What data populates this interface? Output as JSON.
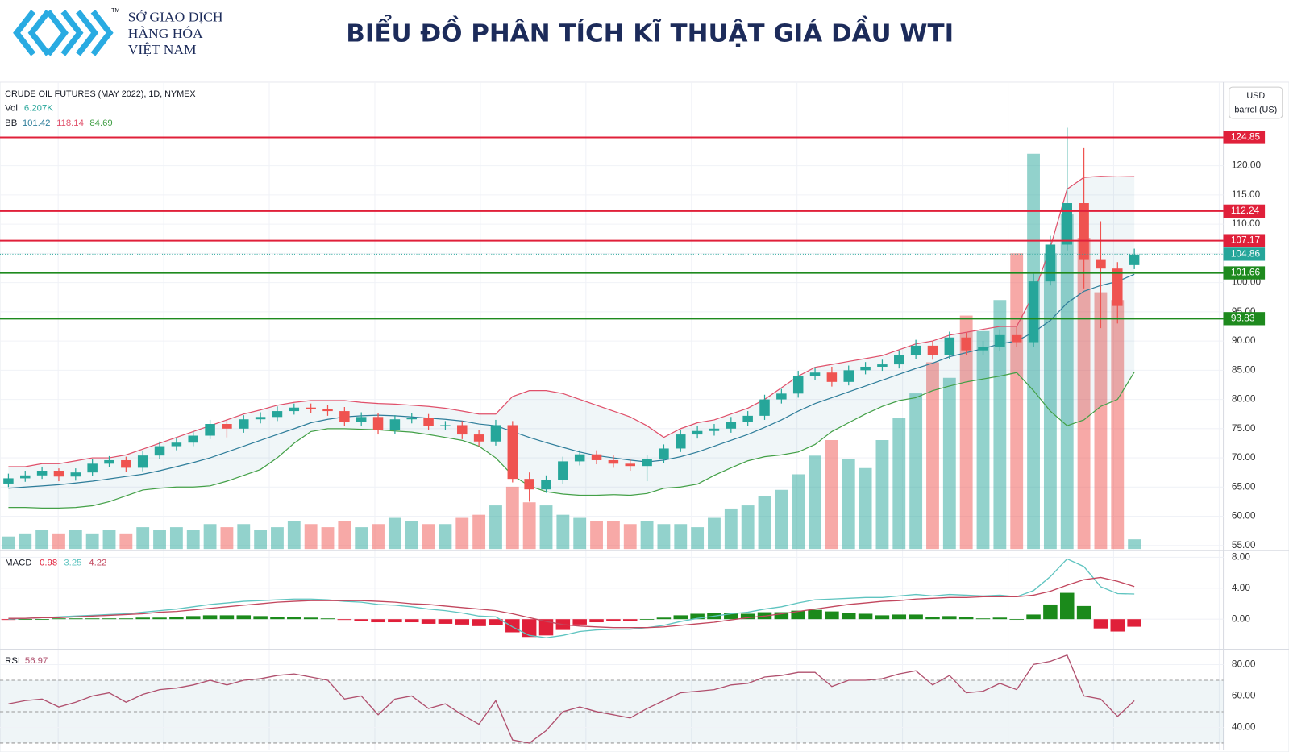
{
  "header": {
    "title": "BIỂU ĐỒ PHÂN TÍCH KĨ THUẬT GIÁ DẦU WTI",
    "logo": {
      "line1": "SỞ GIAO DỊCH",
      "line2": "HÀNG HÓA",
      "line3": "VIỆT NAM",
      "mark": "TM"
    }
  },
  "unit": {
    "currency": "USD",
    "measure": "barrel (US)"
  },
  "chart_data": [
    {
      "type": "candlestick",
      "title": "CRUDE OIL FUTURES (MAY 2022), 1D, NYMEX",
      "up_color": "#26a69a",
      "down_color": "#ef5350",
      "grid": true,
      "ylim": [
        54.4,
        134.3
      ],
      "yticks": [
        {
          "value": 55,
          "label": "55.00"
        },
        {
          "value": 60,
          "label": "60.00"
        },
        {
          "value": 65,
          "label": "65.00"
        },
        {
          "value": 70,
          "label": "70.00"
        },
        {
          "value": 75,
          "label": "75.00"
        },
        {
          "value": 80,
          "label": "80.00"
        },
        {
          "value": 85,
          "label": "85.00"
        },
        {
          "value": 90,
          "label": "90.00"
        },
        {
          "value": 95,
          "label": "95.00"
        },
        {
          "value": 100,
          "label": "100.00"
        },
        {
          "value": 105,
          "label": "105.00"
        },
        {
          "value": 110,
          "label": "110.00"
        },
        {
          "value": 115,
          "label": "115.00"
        },
        {
          "value": 120,
          "label": "120.00"
        }
      ],
      "open": [
        65.6,
        66.5,
        67,
        67.8,
        66.8,
        67.5,
        69,
        69.6,
        68.3,
        70.4,
        72,
        72.6,
        73.8,
        75.8,
        75,
        76.6,
        77,
        78,
        78.6,
        78.4,
        78,
        76.2,
        77,
        74.8,
        76.6,
        76.8,
        75.4,
        75.6,
        74,
        72.8,
        75.6,
        66.4,
        64.6,
        66.2,
        69.4,
        70.6,
        69.6,
        69,
        68.6,
        69.8,
        71.6,
        74,
        74.6,
        75,
        76.2,
        77.2,
        80,
        81,
        84,
        84.6,
        83,
        85,
        85.6,
        86,
        87.6,
        89.2,
        87.6,
        90.6,
        88.4,
        89,
        91,
        89.8,
        100.2,
        106.5,
        113.6,
        104,
        102.4,
        103
      ],
      "high": [
        67.3,
        67.8,
        68.5,
        68.2,
        68.2,
        69.8,
        70.3,
        70.2,
        71.2,
        72.8,
        73.4,
        74.5,
        76.5,
        76.6,
        77.3,
        77.8,
        78.8,
        79.3,
        79.3,
        79.1,
        78.7,
        77.8,
        77.6,
        77.3,
        77.6,
        77.5,
        76.3,
        76.3,
        74.8,
        76.5,
        76.3,
        67.5,
        67,
        70.2,
        71.3,
        71.3,
        70.4,
        69.8,
        70.5,
        72.3,
        74.8,
        75.4,
        75.8,
        77,
        78,
        80.8,
        81.8,
        84.9,
        85.5,
        85.6,
        85.8,
        86.4,
        86.8,
        88.4,
        90.2,
        90,
        91.6,
        91.4,
        90,
        92,
        92.4,
        101.5,
        108,
        126.5,
        123,
        110.5,
        103.5,
        105.8
      ],
      "low": [
        65,
        65.9,
        66.4,
        66,
        66.1,
        66.9,
        68.4,
        67.6,
        67.7,
        69.8,
        71.3,
        72,
        73.2,
        73.5,
        74.3,
        75.9,
        76.3,
        77.4,
        77.6,
        77.2,
        75.5,
        75.5,
        74,
        74.1,
        75.9,
        74.7,
        74.7,
        73.2,
        72,
        72.1,
        65.8,
        62.5,
        64,
        65.5,
        68.7,
        68.9,
        68.3,
        67.8,
        66,
        69.1,
        71,
        73.3,
        73.8,
        74.3,
        75.5,
        76.5,
        79.3,
        80.3,
        83.3,
        82.2,
        82.4,
        84.3,
        84.9,
        85.3,
        86.9,
        86.8,
        86.9,
        87.6,
        87.6,
        88.3,
        89,
        89,
        99.5,
        105.5,
        99,
        92.2,
        93,
        102.3
      ],
      "close": [
        66.5,
        67,
        67.8,
        66.8,
        67.5,
        69,
        69.6,
        68.3,
        70.4,
        72,
        72.6,
        73.8,
        75.8,
        75,
        76.6,
        77,
        78,
        78.6,
        78.4,
        78,
        76.2,
        77,
        74.8,
        76.6,
        76.8,
        75.4,
        75.6,
        74,
        72.8,
        75.6,
        66.4,
        64.6,
        66.2,
        69.4,
        70.6,
        69.6,
        69,
        68.6,
        69.8,
        71.6,
        74,
        74.6,
        75,
        76.2,
        77.2,
        80,
        81,
        84,
        84.6,
        83,
        85,
        85.6,
        86,
        87.6,
        89.2,
        87.6,
        90.6,
        88.4,
        89,
        91,
        89.8,
        100.2,
        106.5,
        113.6,
        104,
        102.4,
        96,
        104.8
      ],
      "volume": {
        "name": "Vol",
        "last_label": "6.207K",
        "ylim": [
          0,
          300
        ],
        "values": [
          8,
          10,
          12,
          10,
          12,
          10,
          12,
          10,
          14,
          12,
          14,
          12,
          16,
          14,
          16,
          12,
          14,
          18,
          16,
          14,
          18,
          14,
          16,
          20,
          18,
          16,
          16,
          20,
          22,
          28,
          40,
          30,
          28,
          22,
          20,
          18,
          18,
          16,
          18,
          16,
          16,
          14,
          20,
          26,
          28,
          34,
          38,
          48,
          60,
          70,
          58,
          52,
          70,
          84,
          100,
          120,
          110,
          150,
          140,
          160,
          190,
          254,
          190,
          215,
          200,
          165,
          160,
          6.207
        ]
      },
      "bb": {
        "name": "BB",
        "last": [
          101.42,
          118.14,
          84.69
        ],
        "colors": [
          "#2e7d9a",
          "#e0506a",
          "#43a047"
        ],
        "upper": [
          68.5,
          68.5,
          69,
          69,
          69.5,
          70,
          70,
          70.5,
          71.5,
          72.5,
          73.5,
          74.5,
          75.5,
          76.5,
          77.5,
          78.2,
          79,
          79.5,
          79.8,
          79.8,
          79.8,
          79.5,
          79.3,
          79.2,
          79,
          78.8,
          78.5,
          78,
          77.5,
          77.5,
          80.5,
          81.5,
          81.5,
          81,
          80,
          79,
          78,
          77,
          75.5,
          73.5,
          75,
          76,
          76.5,
          77.5,
          78.5,
          80,
          82,
          84,
          85.5,
          86,
          86.5,
          87,
          87.5,
          88.5,
          89.5,
          90,
          91,
          91.5,
          92,
          92.5,
          92.5,
          98,
          106,
          116,
          118,
          118.2,
          118.1,
          118.14
        ],
        "middle": [
          64.8,
          65,
          65.2,
          65.4,
          65.7,
          66,
          66.4,
          66.8,
          67.2,
          67.8,
          68.5,
          69.2,
          70,
          71,
          72,
          73,
          74,
          75,
          76,
          76.6,
          77,
          77.2,
          77.3,
          77.2,
          77,
          76.8,
          76.6,
          76.3,
          75.8,
          75.5,
          74.5,
          73.5,
          72.6,
          71.8,
          71,
          70.4,
          70,
          69.6,
          69.3,
          69.6,
          70.2,
          71,
          72,
          73,
          74,
          75.2,
          76.5,
          78,
          79.3,
          80.3,
          81.3,
          82.3,
          83.3,
          84.3,
          85.3,
          86.2,
          87.3,
          88,
          88.7,
          89.5,
          90,
          91.5,
          93.5,
          96.5,
          98.5,
          99.5,
          100.2,
          101.42
        ],
        "lower": [
          61.5,
          61.5,
          61.4,
          61.4,
          61.5,
          61.8,
          62.5,
          63.5,
          64.5,
          64.8,
          65,
          65,
          65.2,
          66,
          67,
          68,
          70,
          72.5,
          74.5,
          75,
          75,
          74.9,
          74.8,
          74.6,
          74.4,
          74,
          73.5,
          73,
          72,
          70,
          67,
          65.2,
          64.2,
          63.8,
          63.6,
          63.6,
          63.7,
          63.6,
          63.9,
          64.8,
          65,
          65.5,
          67,
          68.3,
          69.5,
          70.2,
          70.5,
          71,
          72.3,
          74.5,
          76,
          77.5,
          78.8,
          79.8,
          80.3,
          81.5,
          82.3,
          83,
          83.5,
          84,
          84.6,
          81.5,
          78,
          75.5,
          76.5,
          78.8,
          80,
          84.69
        ]
      },
      "levels": [
        {
          "value": 124.85,
          "color": "#e0203a",
          "style": "solid"
        },
        {
          "value": 112.24,
          "color": "#e0203a",
          "style": "solid"
        },
        {
          "value": 107.17,
          "color": "#e0203a",
          "style": "solid"
        },
        {
          "value": 104.86,
          "color": "#26a69a",
          "style": "dotted"
        },
        {
          "value": 101.66,
          "color": "#1e8a1e",
          "style": "solid"
        },
        {
          "value": 93.83,
          "color": "#1e8a1e",
          "style": "solid"
        }
      ]
    },
    {
      "type": "macd",
      "title": "MACD",
      "ylim": [
        -3.68,
        8.86
      ],
      "yticks": [
        {
          "value": 8,
          "label": "8.00"
        },
        {
          "value": 4,
          "label": "4.00"
        },
        {
          "value": 0,
          "label": "0.00"
        }
      ],
      "last": [
        -0.98,
        3.25,
        4.22
      ],
      "series": [
        {
          "name": "Histogram",
          "color": "#1b8a1b",
          "neg_color": "#e0203a",
          "values": [
            -0.1,
            0,
            0,
            0.1,
            0.1,
            0.1,
            0.1,
            0.1,
            0.2,
            0.2,
            0.3,
            0.4,
            0.5,
            0.5,
            0.5,
            0.4,
            0.3,
            0.3,
            0.2,
            0.1,
            -0.1,
            -0.2,
            -0.4,
            -0.4,
            -0.4,
            -0.6,
            -0.6,
            -0.7,
            -0.9,
            -0.8,
            -1.7,
            -2.3,
            -2.1,
            -1.4,
            -0.7,
            -0.4,
            -0.2,
            -0.2,
            0,
            0.2,
            0.5,
            0.7,
            0.8,
            0.8,
            0.7,
            0.9,
            0.9,
            1.1,
            1.2,
            1,
            0.8,
            0.7,
            0.5,
            0.6,
            0.6,
            0.3,
            0.4,
            0.3,
            0.1,
            0.2,
            0,
            0.6,
            1.9,
            3.4,
            1.7,
            -1.2,
            -1.6,
            -0.98
          ]
        },
        {
          "name": "MACD",
          "color": "#5fc4c0",
          "values": [
            0,
            0.1,
            0.2,
            0.3,
            0.4,
            0.5,
            0.6,
            0.7,
            0.9,
            1.1,
            1.3,
            1.6,
            1.9,
            2.1,
            2.3,
            2.4,
            2.5,
            2.6,
            2.6,
            2.5,
            2.3,
            2.2,
            1.9,
            1.8,
            1.6,
            1.3,
            1.1,
            0.8,
            0.4,
            0.3,
            -1,
            -2.1,
            -2.4,
            -2.1,
            -1.6,
            -1.4,
            -1.3,
            -1.3,
            -1.1,
            -0.8,
            -0.3,
            0.1,
            0.4,
            0.7,
            0.9,
            1.3,
            1.6,
            2.1,
            2.5,
            2.6,
            2.7,
            2.8,
            2.8,
            3,
            3.2,
            3,
            3.2,
            3.1,
            3,
            3.1,
            2.9,
            3.7,
            5.5,
            7.8,
            6.8,
            4.2,
            3.3,
            3.25
          ]
        },
        {
          "name": "Signal",
          "color": "#c2475e",
          "values": [
            0.1,
            0.1,
            0.2,
            0.2,
            0.3,
            0.4,
            0.5,
            0.6,
            0.7,
            0.9,
            1,
            1.2,
            1.4,
            1.6,
            1.8,
            2,
            2.2,
            2.3,
            2.4,
            2.4,
            2.4,
            2.4,
            2.3,
            2.2,
            2,
            1.9,
            1.7,
            1.5,
            1.3,
            1.1,
            0.7,
            0.2,
            -0.3,
            -0.7,
            -0.9,
            -1,
            -1.1,
            -1.1,
            -1.1,
            -1,
            -0.8,
            -0.6,
            -0.4,
            -0.1,
            0.2,
            0.4,
            0.7,
            1,
            1.3,
            1.6,
            1.9,
            2.1,
            2.3,
            2.4,
            2.6,
            2.7,
            2.8,
            2.8,
            2.9,
            2.9,
            2.9,
            3.1,
            3.6,
            4.4,
            5.1,
            5.4,
            4.9,
            4.22
          ]
        }
      ]
    },
    {
      "type": "line",
      "title": "RSI",
      "ylim": [
        25.9,
        89.7
      ],
      "band": [
        30,
        70
      ],
      "mid": 50,
      "last": 56.97,
      "yticks": [
        {
          "value": 80,
          "label": "80.00"
        },
        {
          "value": 60,
          "label": "60.00"
        },
        {
          "value": 40,
          "label": "40.00"
        }
      ],
      "color": "#b0506e",
      "values": [
        55,
        57,
        58,
        53,
        56,
        60,
        62,
        56,
        61,
        64,
        65,
        67,
        70,
        67,
        70,
        71,
        73,
        74,
        72,
        70,
        58,
        60,
        48,
        58,
        60,
        52,
        55,
        48,
        42,
        57,
        32,
        30,
        38,
        50,
        53,
        50,
        48,
        46,
        52,
        57,
        62,
        63,
        64,
        67,
        68,
        72,
        73,
        75,
        75,
        66,
        70,
        70,
        71,
        74,
        76,
        67,
        73,
        62,
        63,
        68,
        64,
        80,
        82,
        86,
        60,
        58,
        47,
        56.97
      ]
    }
  ]
}
